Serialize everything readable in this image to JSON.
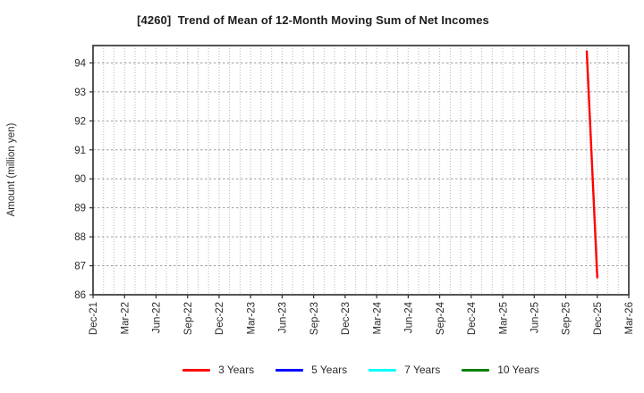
{
  "chart_data": {
    "type": "line",
    "title": "[4260]  Trend of Mean of 12-Month Moving Sum of Net Incomes",
    "ylabel": "Amount (million yen)",
    "xlabel": "",
    "ylim": [
      86,
      94.6
    ],
    "yticks": [
      86,
      87,
      88,
      89,
      90,
      91,
      92,
      93,
      94
    ],
    "x_axis": {
      "start": "Dec-21",
      "end": "Mar-26",
      "months_span": 51,
      "tick_interval_months": 3,
      "tick_labels": [
        "Dec-21",
        "Mar-22",
        "Jun-22",
        "Sep-22",
        "Dec-22",
        "Mar-23",
        "Jun-23",
        "Sep-23",
        "Dec-23",
        "Mar-24",
        "Jun-24",
        "Sep-24",
        "Dec-24",
        "Mar-25",
        "Jun-25",
        "Sep-25",
        "Dec-25",
        "Mar-26"
      ]
    },
    "grid": {
      "vertical": "monthly-dotted",
      "horizontal": "unit-dashed",
      "on": true
    },
    "legend_position": "bottom",
    "series": [
      {
        "name": "3 Years",
        "color": "#ff0000",
        "points": [
          {
            "label": "Nov-25",
            "month_index": 47,
            "value": 94.4
          },
          {
            "label": "Dec-25",
            "month_index": 48,
            "value": 86.6
          }
        ]
      },
      {
        "name": "5 Years",
        "color": "#0000ff",
        "points": []
      },
      {
        "name": "7 Years",
        "color": "#00ffff",
        "points": []
      },
      {
        "name": "10 Years",
        "color": "#008000",
        "points": []
      }
    ]
  }
}
